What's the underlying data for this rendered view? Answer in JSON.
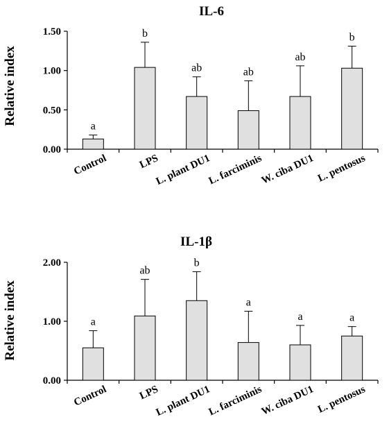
{
  "chart_data": [
    {
      "type": "bar",
      "title": "IL-6",
      "ylabel": "Relative index",
      "xlabel": "",
      "ylim": [
        0,
        1.5
      ],
      "yticks": [
        "0.00",
        "0.50",
        "1.00",
        "1.50"
      ],
      "ytick_values": [
        0,
        0.5,
        1.0,
        1.5
      ],
      "categories": [
        "Control",
        "LPS",
        "L. plant DU1",
        "L. farciminis",
        "W. ciba DU1",
        "L. pentosus"
      ],
      "values": [
        0.13,
        1.04,
        0.67,
        0.49,
        0.67,
        1.03
      ],
      "errors": [
        0.05,
        0.32,
        0.25,
        0.38,
        0.39,
        0.28
      ],
      "significance": [
        "a",
        "b",
        "ab",
        "ab",
        "ab",
        "b"
      ],
      "bar_color": "#e0e0e0"
    },
    {
      "type": "bar",
      "title": "IL-1β",
      "ylabel": "Relative index",
      "xlabel": "",
      "ylim": [
        0,
        2.0
      ],
      "yticks": [
        "0.00",
        "1.00",
        "2.00"
      ],
      "ytick_values": [
        0,
        1.0,
        2.0
      ],
      "categories": [
        "Control",
        "LPS",
        "L. plant DU1",
        "L. farciminis",
        "W. ciba DU1",
        "L. pentosus"
      ],
      "values": [
        0.55,
        1.09,
        1.35,
        0.64,
        0.6,
        0.75
      ],
      "errors": [
        0.29,
        0.62,
        0.49,
        0.53,
        0.33,
        0.16
      ],
      "significance": [
        "a",
        "ab",
        "b",
        "a",
        "a",
        "a"
      ],
      "bar_color": "#e0e0e0"
    }
  ]
}
